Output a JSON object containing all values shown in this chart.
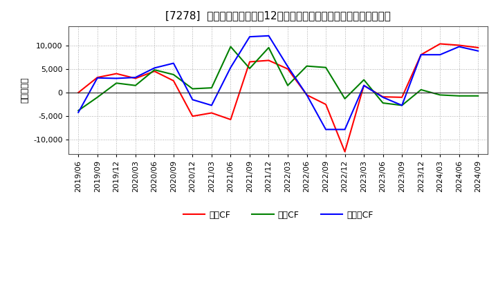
{
  "title": "[7278]  キャッシュフローの12か月移動合計の対前年同期増減額の推移",
  "ylabel": "（百万円）",
  "background_color": "#ffffff",
  "plot_bg_color": "#ffffff",
  "grid_color": "#aaaaaa",
  "dates": [
    "2019/06",
    "2019/09",
    "2019/12",
    "2020/03",
    "2020/06",
    "2020/09",
    "2020/12",
    "2021/03",
    "2021/06",
    "2021/09",
    "2021/12",
    "2022/03",
    "2022/06",
    "2022/09",
    "2022/12",
    "2023/03",
    "2023/06",
    "2023/09",
    "2023/12",
    "2024/03",
    "2024/06",
    "2024/09"
  ],
  "eigyo_cf": [
    0,
    3200,
    4000,
    3000,
    4500,
    2500,
    -5000,
    -4300,
    -5700,
    6500,
    6800,
    5000,
    -500,
    -2500,
    -12500,
    1500,
    -900,
    -1000,
    8000,
    10300,
    10000,
    9500
  ],
  "toshi_cf": [
    -3800,
    -1000,
    2000,
    1500,
    4800,
    3800,
    800,
    1000,
    9700,
    5100,
    9500,
    1500,
    5600,
    5300,
    -1300,
    2700,
    -2200,
    -2700,
    600,
    -500,
    -700,
    -700
  ],
  "free_cf": [
    -4200,
    3100,
    3000,
    3200,
    5200,
    6200,
    -1500,
    -2700,
    5300,
    11800,
    12000,
    5500,
    -500,
    -7800,
    -7800,
    1500,
    -1000,
    -2700,
    8000,
    8000,
    9700,
    8800
  ],
  "eigyo_color": "#ff0000",
  "toshi_color": "#008000",
  "free_color": "#0000ff",
  "ylim": [
    -13000,
    14000
  ],
  "yticks": [
    -10000,
    -5000,
    0,
    5000,
    10000
  ],
  "legend_labels": [
    "営業CF",
    "投資CF",
    "フリーCF"
  ],
  "title_fontsize": 11,
  "tick_fontsize": 8,
  "ylabel_fontsize": 9
}
